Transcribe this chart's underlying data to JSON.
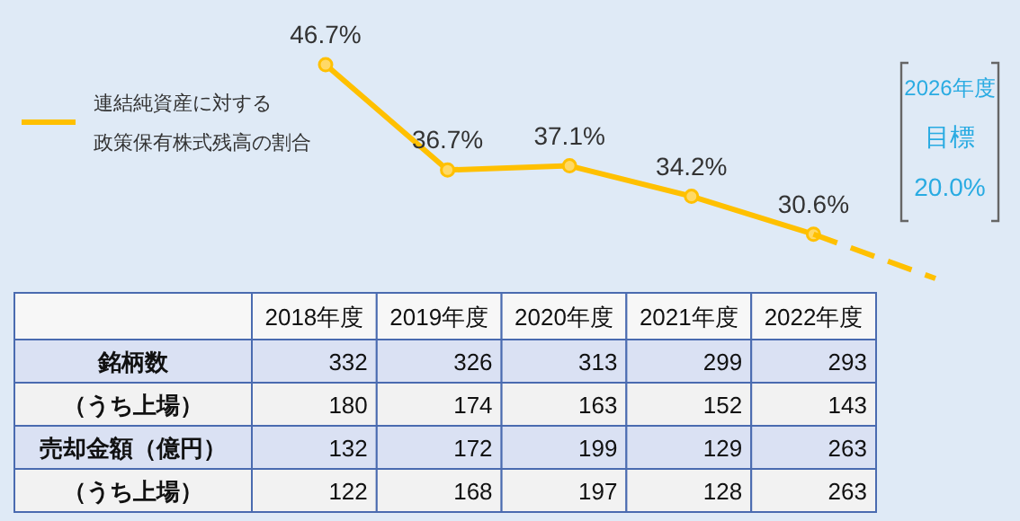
{
  "chart_data": [
    {
      "type": "line",
      "categories": [
        null,
        null,
        null,
        null,
        null,
        null
      ],
      "series": [
        {
          "name": "連結純資産に対する政策保有株式残高の割合",
          "color": "#ffc000",
          "values": [
            46.7,
            36.7,
            37.1,
            34.2,
            30.6,
            null
          ],
          "value_labels": [
            "46.7%",
            "36.7%",
            "37.1%",
            "34.2%",
            "30.6%",
            null
          ],
          "marker": "circle",
          "line_style": "solid"
        },
        {
          "color": "#ffc000",
          "values": [
            null,
            null,
            null,
            null,
            30.6,
            26.4
          ],
          "marker": "none",
          "line_style": "dashed"
        }
      ],
      "legend": "left",
      "annotations": [
        "2026年度",
        "目標",
        "20.0%"
      ]
    },
    {
      "type": "heatmap",
      "categories": [
        "2018年度",
        "2019年度",
        "2020年度",
        "2021年度",
        "2022年度"
      ],
      "data_labels": true,
      "y_categories": [
        "銘柄数",
        "（うち上場）",
        "売却金額（億円）",
        "（うち上場）"
      ],
      "cells": [
        [
          332,
          326,
          313,
          299,
          293
        ],
        [
          180,
          174,
          163,
          152,
          143
        ],
        [
          132,
          172,
          199,
          129,
          263
        ],
        [
          122,
          168,
          197,
          128,
          263
        ]
      ]
    }
  ]
}
